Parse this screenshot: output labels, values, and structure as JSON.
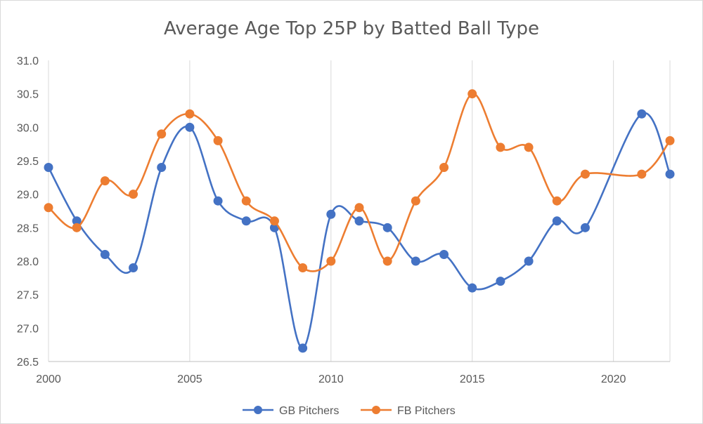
{
  "chart_data": {
    "type": "line",
    "title": "Average Age Top 25P by Batted Ball Type",
    "xlabel": "",
    "ylabel": "",
    "x": [
      2000,
      2001,
      2002,
      2003,
      2004,
      2005,
      2006,
      2007,
      2008,
      2009,
      2010,
      2011,
      2012,
      2013,
      2014,
      2015,
      2016,
      2017,
      2018,
      2019,
      2020,
      2021,
      2022
    ],
    "xlim": [
      2000,
      2022
    ],
    "ylim": [
      26.5,
      31.0
    ],
    "x_ticks": [
      "2000",
      "2005",
      "2010",
      "2015",
      "2020"
    ],
    "y_ticks": [
      "26.5",
      "27.0",
      "27.5",
      "28.0",
      "28.5",
      "29.0",
      "29.5",
      "30.0",
      "30.5",
      "31.0"
    ],
    "grid": "vertical",
    "smooth": true,
    "legend_position": "bottom",
    "series": [
      {
        "name": "GB Pitchers",
        "color": "#4472C4",
        "values": [
          29.4,
          28.6,
          28.1,
          27.9,
          29.4,
          30.0,
          28.9,
          28.6,
          28.5,
          26.7,
          28.7,
          28.6,
          28.5,
          28.0,
          28.1,
          27.6,
          27.7,
          28.0,
          28.6,
          28.5,
          null,
          30.2,
          29.3
        ]
      },
      {
        "name": "FB Pitchers",
        "color": "#ED7D31",
        "values": [
          28.8,
          28.5,
          29.2,
          29.0,
          29.9,
          30.2,
          29.8,
          28.9,
          28.6,
          27.9,
          28.0,
          28.8,
          28.0,
          28.9,
          29.4,
          30.5,
          29.7,
          29.7,
          28.9,
          29.3,
          null,
          29.3,
          29.8
        ]
      }
    ]
  }
}
